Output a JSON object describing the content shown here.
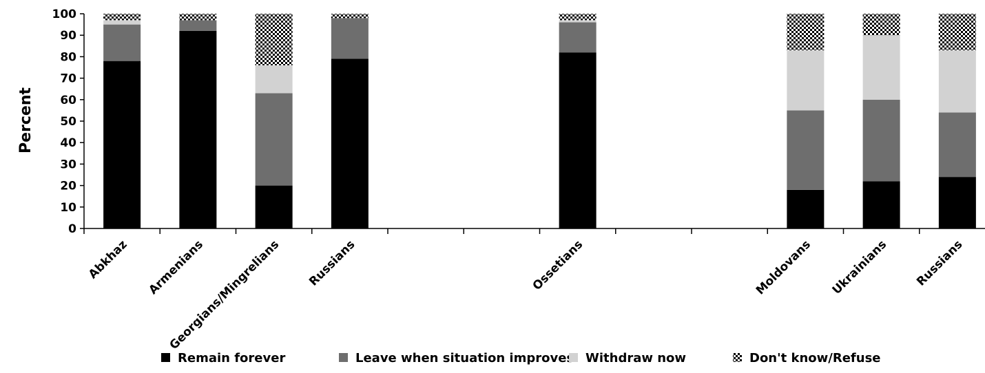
{
  "chart_data": {
    "type": "bar",
    "stacked": true,
    "ylabel": "Percent",
    "ylim": [
      0,
      100
    ],
    "yticks": [
      0,
      10,
      20,
      30,
      40,
      50,
      60,
      70,
      80,
      90,
      100
    ],
    "slots": [
      "Abkhaz",
      "Armenians",
      "Georgians/Mingrelians",
      "Russians",
      "",
      "",
      "Ossetians",
      "",
      "",
      "Moldovans",
      "Ukrainians",
      "Russians"
    ],
    "categories": [
      "Abkhaz",
      "Armenians",
      "Georgians/Mingrelians",
      "Russians",
      "Ossetians",
      "Moldovans",
      "Ukrainians",
      "Russians"
    ],
    "series": [
      {
        "name": "Remain forever",
        "color": "#000000",
        "pattern": "solid",
        "values": [
          78,
          92,
          20,
          79,
          82,
          18,
          22,
          24
        ]
      },
      {
        "name": "Leave when situation improves",
        "color": "#6e6e6e",
        "pattern": "solid",
        "values": [
          17,
          5,
          43,
          19,
          14,
          37,
          38,
          30
        ]
      },
      {
        "name": "Withdraw now",
        "color": "#d2d2d2",
        "pattern": "solid",
        "values": [
          2,
          0,
          13,
          0,
          1,
          28,
          30,
          29
        ]
      },
      {
        "name": "Don't know/Refuse",
        "color": "#000000",
        "pattern": "checker",
        "values": [
          3,
          3,
          24,
          2,
          3,
          17,
          10,
          17
        ]
      }
    ],
    "legend_position": "bottom",
    "grid": false
  }
}
